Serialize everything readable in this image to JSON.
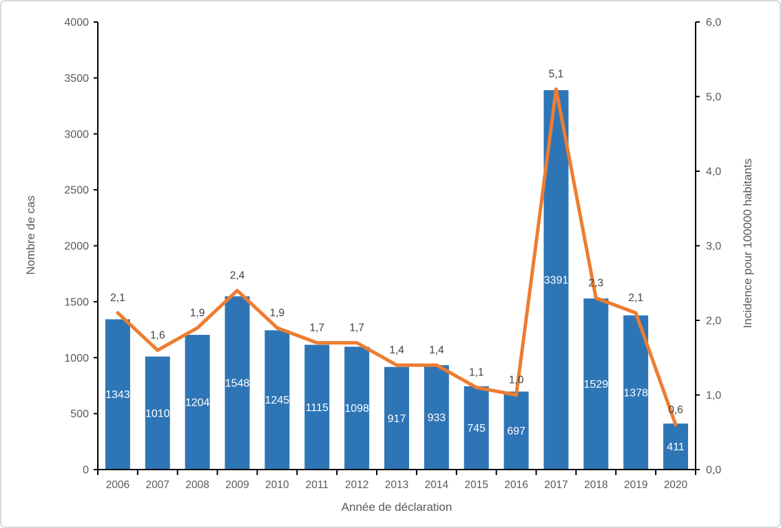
{
  "chart_data": {
    "type": "bar",
    "subtype": "bar-line-combo",
    "categories": [
      "2006",
      "2007",
      "2008",
      "2009",
      "2010",
      "2011",
      "2012",
      "2013",
      "2014",
      "2015",
      "2016",
      "2017",
      "2018",
      "2019",
      "2020"
    ],
    "series": [
      {
        "name": "Nombre de cas",
        "type": "bar",
        "axis": "left",
        "values": [
          1343,
          1010,
          1204,
          1548,
          1245,
          1115,
          1098,
          917,
          933,
          745,
          697,
          3391,
          1529,
          1378,
          411
        ],
        "labels": [
          "1343",
          "1010",
          "1204",
          "1548",
          "1245",
          "1115",
          "1098",
          "917",
          "933",
          "745",
          "697",
          "3391",
          "1529",
          "1378",
          "411"
        ],
        "color": "#2E75B6",
        "label_color": "#FFFFFF",
        "label_position": "center"
      },
      {
        "name": "Incidence pour 100000 habitants",
        "type": "line",
        "axis": "right",
        "values": [
          2.1,
          1.6,
          1.9,
          2.4,
          1.9,
          1.7,
          1.7,
          1.4,
          1.4,
          1.1,
          1.0,
          5.1,
          2.3,
          2.1,
          0.6
        ],
        "labels": [
          "2,1",
          "1,6",
          "1,9",
          "2,4",
          "1,9",
          "1,7",
          "1,7",
          "1,4",
          "1,4",
          "1,1",
          "1,0",
          "5,1",
          "2,3",
          "2,1",
          "0,6"
        ],
        "color": "#ED7D31",
        "label_color": "#404040",
        "label_position": "above"
      }
    ],
    "left_axis": {
      "title": "Nombre de cas",
      "min": 0,
      "max": 4000,
      "step": 500,
      "tick_labels": [
        "0",
        "500",
        "1000",
        "1500",
        "2000",
        "2500",
        "3000",
        "3500",
        "4000"
      ]
    },
    "right_axis": {
      "title": "Incidence pour 100000 habitants",
      "min": 0,
      "max": 6,
      "step": 1,
      "tick_labels": [
        "0,0",
        "1,0",
        "2,0",
        "3,0",
        "4,0",
        "5,0",
        "6,0"
      ]
    },
    "x_axis": {
      "title": "Année de déclaration"
    },
    "title": "",
    "legend": "none",
    "grid": "off"
  },
  "colors": {
    "bar": "#2E75B6",
    "line": "#ED7D31",
    "axis_line": "#000000",
    "tick_label": "#595959",
    "axis_title": "#595959",
    "line_data_label": "#404040",
    "bar_data_label": "#FFFFFF",
    "background": "#FFFFFF",
    "frame_border": "#D9D9D9"
  }
}
